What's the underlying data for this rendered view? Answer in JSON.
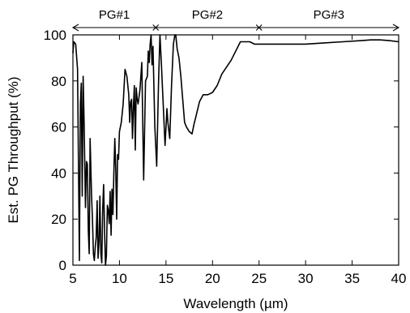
{
  "chart_data": {
    "type": "line",
    "title": "",
    "xlabel": "Wavelength (µm)",
    "ylabel": "Est. PG Throughput (%)",
    "xlim": [
      5,
      40
    ],
    "ylim": [
      0,
      100
    ],
    "x_ticks": [
      5,
      10,
      15,
      20,
      25,
      30,
      35,
      40
    ],
    "y_ticks": [
      0,
      20,
      40,
      60,
      80,
      100
    ],
    "x_tick_labels": [
      "5",
      "10",
      "15",
      "20",
      "25",
      "30",
      "35",
      "40"
    ],
    "y_tick_labels": [
      "0",
      "20",
      "40",
      "60",
      "80",
      "100"
    ],
    "grid": false,
    "legend": "none",
    "line_color": "#000000",
    "ranges": [
      {
        "label": "PG#1",
        "x_start": 5,
        "x_end": 13.9
      },
      {
        "label": "PG#2",
        "x_start": 13.9,
        "x_end": 25
      },
      {
        "label": "PG#3",
        "x_start": 25,
        "x_end": 40
      }
    ],
    "series": [
      {
        "x": [
          5.0,
          5.1,
          5.3,
          5.5,
          5.7,
          5.8,
          5.9,
          6.0,
          6.1,
          6.2,
          6.35,
          6.45,
          6.55,
          6.65,
          6.75,
          6.85,
          7.0,
          7.1,
          7.2,
          7.3,
          7.4,
          7.5,
          7.6,
          7.7,
          7.8,
          7.9,
          8.0,
          8.1,
          8.2,
          8.3,
          8.4,
          8.5,
          8.6,
          8.7,
          8.8,
          8.9,
          9.0,
          9.1,
          9.2,
          9.3,
          9.4,
          9.5,
          9.6,
          9.7,
          9.8,
          9.9,
          10.0,
          10.2,
          10.4,
          10.6,
          10.8,
          11.0,
          11.1,
          11.2,
          11.3,
          11.4,
          11.5,
          11.6,
          11.7,
          11.8,
          11.9,
          12.0,
          12.2,
          12.4,
          12.6,
          12.8,
          13.0,
          13.1,
          13.2,
          13.3,
          13.4,
          13.5,
          13.6,
          13.8,
          14.0,
          14.2,
          14.35,
          14.5,
          14.7,
          14.9,
          15.0,
          15.1,
          15.2,
          15.4,
          15.6,
          15.8,
          15.95,
          16.05,
          16.2,
          16.4,
          16.6,
          16.8,
          17.0,
          17.2,
          17.5,
          17.8,
          18.0,
          18.3,
          18.6,
          19.0,
          19.3,
          19.5,
          20.0,
          20.5,
          21.0,
          22.0,
          23.0,
          23.5,
          24.0,
          24.5,
          25.0,
          26.0,
          28.0,
          30.0,
          32.0,
          34.0,
          36.0,
          37.0,
          38.0,
          39.0,
          40.0
        ],
        "values": [
          92,
          97,
          96,
          85,
          2,
          70,
          79,
          30,
          82,
          62,
          25,
          45,
          44,
          15,
          5,
          55,
          30,
          20,
          5,
          2,
          8,
          12,
          28,
          3,
          10,
          30,
          5,
          1,
          25,
          35,
          14,
          0,
          4,
          26,
          24,
          18,
          32,
          13,
          33,
          22,
          40,
          55,
          42,
          20,
          48,
          46,
          58,
          62,
          70,
          85,
          82,
          74,
          62,
          71,
          72,
          55,
          69,
          78,
          50,
          77,
          72,
          70,
          76,
          88,
          37,
          80,
          82,
          93,
          88,
          96,
          100,
          87,
          95,
          60,
          43,
          80,
          100,
          88,
          70,
          52,
          60,
          68,
          62,
          55,
          78,
          96,
          100,
          100,
          94,
          90,
          82,
          72,
          62,
          60,
          58,
          57,
          61,
          66,
          71,
          74,
          74,
          74,
          75,
          78,
          83,
          89,
          97,
          97,
          97,
          96,
          96,
          96,
          96,
          96,
          96.5,
          97,
          97.5,
          97.8,
          97.8,
          97.5,
          97
        ]
      }
    ]
  }
}
